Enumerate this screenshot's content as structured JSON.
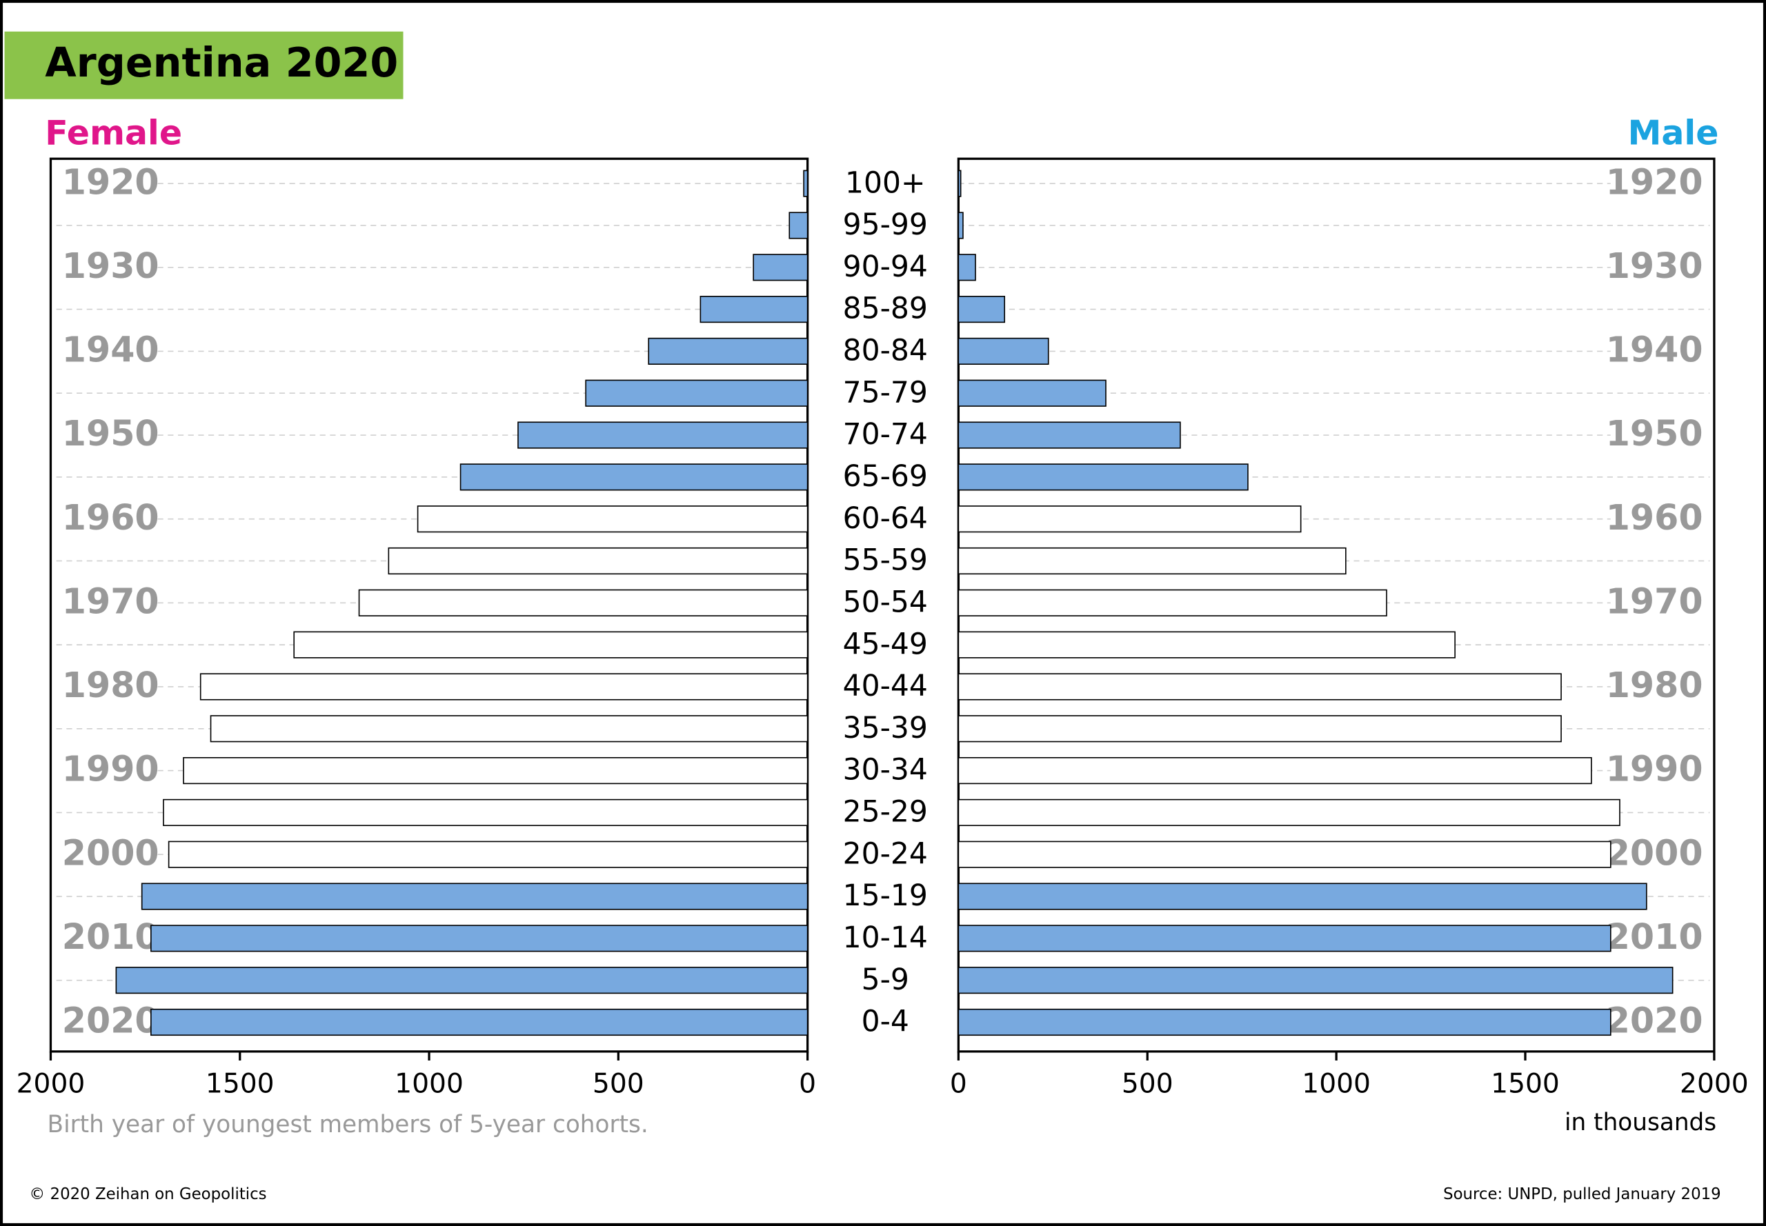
{
  "title": "Argentina 2020",
  "note": "Birth year of youngest members of 5-year cohorts.",
  "unit": "in thousands",
  "copyright": "© 2020 Zeihan on Geopolitics",
  "source": "Source: UNPD, pulled January 2019",
  "chart_data": {
    "type": "pyramid",
    "categories": [
      "100+",
      "95-99",
      "90-94",
      "85-89",
      "80-84",
      "75-79",
      "70-74",
      "65-69",
      "60-64",
      "55-59",
      "50-54",
      "45-49",
      "40-44",
      "35-39",
      "30-34",
      "25-29",
      "20-24",
      "15-19",
      "10-14",
      "5-9",
      "0-4"
    ],
    "birth_years": [
      1920,
      null,
      1930,
      null,
      1940,
      null,
      1950,
      null,
      1960,
      null,
      1970,
      null,
      1980,
      null,
      1990,
      null,
      2000,
      null,
      2010,
      null,
      2020
    ],
    "bar_colors": [
      "#78a9df",
      "#78a9df",
      "#78a9df",
      "#78a9df",
      "#78a9df",
      "#78a9df",
      "#78a9df",
      "#78a9df",
      "#ffffff",
      "#ffffff",
      "#ffffff",
      "#ffffff",
      "#ffffff",
      "#ffffff",
      "#ffffff",
      "#ffffff",
      "#ffffff",
      "#78a9df",
      "#78a9df",
      "#78a9df",
      "#78a9df"
    ],
    "xlim": [
      0,
      2000
    ],
    "xticks": [
      0,
      500,
      1000,
      1500,
      2000
    ],
    "grid": true,
    "series": [
      {
        "name": "Female",
        "color": "#e0168a",
        "values": [
          10,
          48,
          143,
          283,
          420,
          586,
          765,
          917,
          1030,
          1107,
          1185,
          1357,
          1604,
          1577,
          1649,
          1702,
          1688,
          1759,
          1735,
          1827,
          1735
        ]
      },
      {
        "name": "Male",
        "color": "#1ba3e0",
        "values": [
          6,
          12,
          45,
          122,
          238,
          390,
          587,
          766,
          906,
          1025,
          1133,
          1314,
          1595,
          1595,
          1675,
          1750,
          1726,
          1821,
          1726,
          1890,
          1726
        ]
      }
    ]
  }
}
